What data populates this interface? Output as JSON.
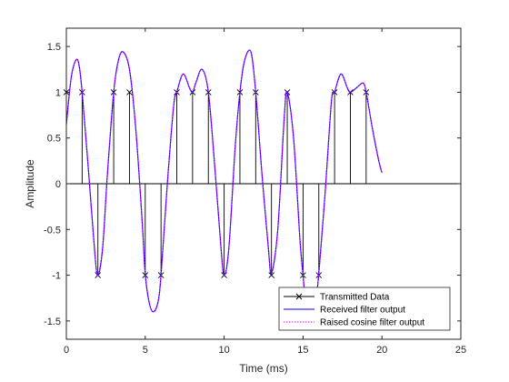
{
  "chart_data": {
    "type": "line",
    "xlabel": "Time (ms)",
    "ylabel": "Amplitude",
    "xlim": [
      0,
      25
    ],
    "ylim": [
      -1.7,
      1.7
    ],
    "xticks": [
      "0",
      "5",
      "10",
      "15",
      "20",
      "25"
    ],
    "yticks": [
      "-1.5",
      "-1",
      "-0.5",
      "0",
      "0.5",
      "1",
      "1.5"
    ],
    "legend_position": "bottom-right",
    "legend": [
      "Transmitted Data",
      "Received filter output",
      "Raised cosine filter output"
    ],
    "colors": {
      "transmitted": "#000000",
      "received": "#0000ff",
      "raised_cosine": "#ff00ff"
    },
    "transmitted_data": {
      "t": [
        0,
        1,
        2,
        3,
        4,
        5,
        6,
        7,
        8,
        9,
        10,
        11,
        12,
        13,
        14,
        15,
        16,
        17,
        18,
        19
      ],
      "values": [
        1,
        1,
        -1,
        1,
        1,
        -1,
        -1,
        1,
        1,
        1,
        -1,
        1,
        1,
        -1,
        1,
        -1,
        -1,
        1,
        1,
        1
      ]
    },
    "received_output": {
      "t": [
        0,
        0.3,
        0.6,
        0.8,
        1.0,
        1.4,
        1.8,
        2.0,
        2.3,
        2.6,
        3.0,
        3.3,
        3.6,
        4.0,
        4.4,
        4.8,
        5.0,
        5.25,
        5.5,
        5.8,
        6.0,
        6.4,
        6.8,
        7.0,
        7.4,
        7.8,
        8.0,
        8.2,
        8.6,
        9.0,
        9.4,
        9.8,
        10.0,
        10.3,
        10.7,
        11.0,
        11.3,
        11.7,
        12.0,
        12.4,
        12.8,
        13.0,
        13.4,
        13.8,
        14.0,
        14.4,
        14.8,
        15.0,
        15.2,
        15.5,
        15.8,
        16.0,
        16.4,
        16.8,
        17.0,
        17.4,
        17.8,
        18.0,
        18.4,
        18.8,
        19.0,
        19.4,
        19.8,
        20.0
      ],
      "values": [
        0.65,
        1.15,
        1.35,
        1.3,
        1.0,
        0.15,
        -0.75,
        -1.0,
        -0.7,
        0.1,
        1.0,
        1.35,
        1.44,
        1.25,
        0.6,
        -0.4,
        -0.99,
        -1.3,
        -1.4,
        -1.3,
        -1.0,
        0.0,
        0.85,
        1.0,
        1.2,
        1.05,
        1.0,
        1.1,
        1.25,
        1.0,
        0.2,
        -0.7,
        -1.0,
        -0.7,
        0.4,
        1.0,
        1.35,
        1.44,
        1.0,
        0.1,
        -0.7,
        -0.98,
        -0.5,
        0.7,
        1.0,
        0.5,
        -0.6,
        -1.0,
        -1.35,
        -1.5,
        -1.3,
        -0.98,
        -0.1,
        0.9,
        1.0,
        1.2,
        1.05,
        1.0,
        1.05,
        1.1,
        1.0,
        0.6,
        0.25,
        0.12
      ]
    }
  }
}
